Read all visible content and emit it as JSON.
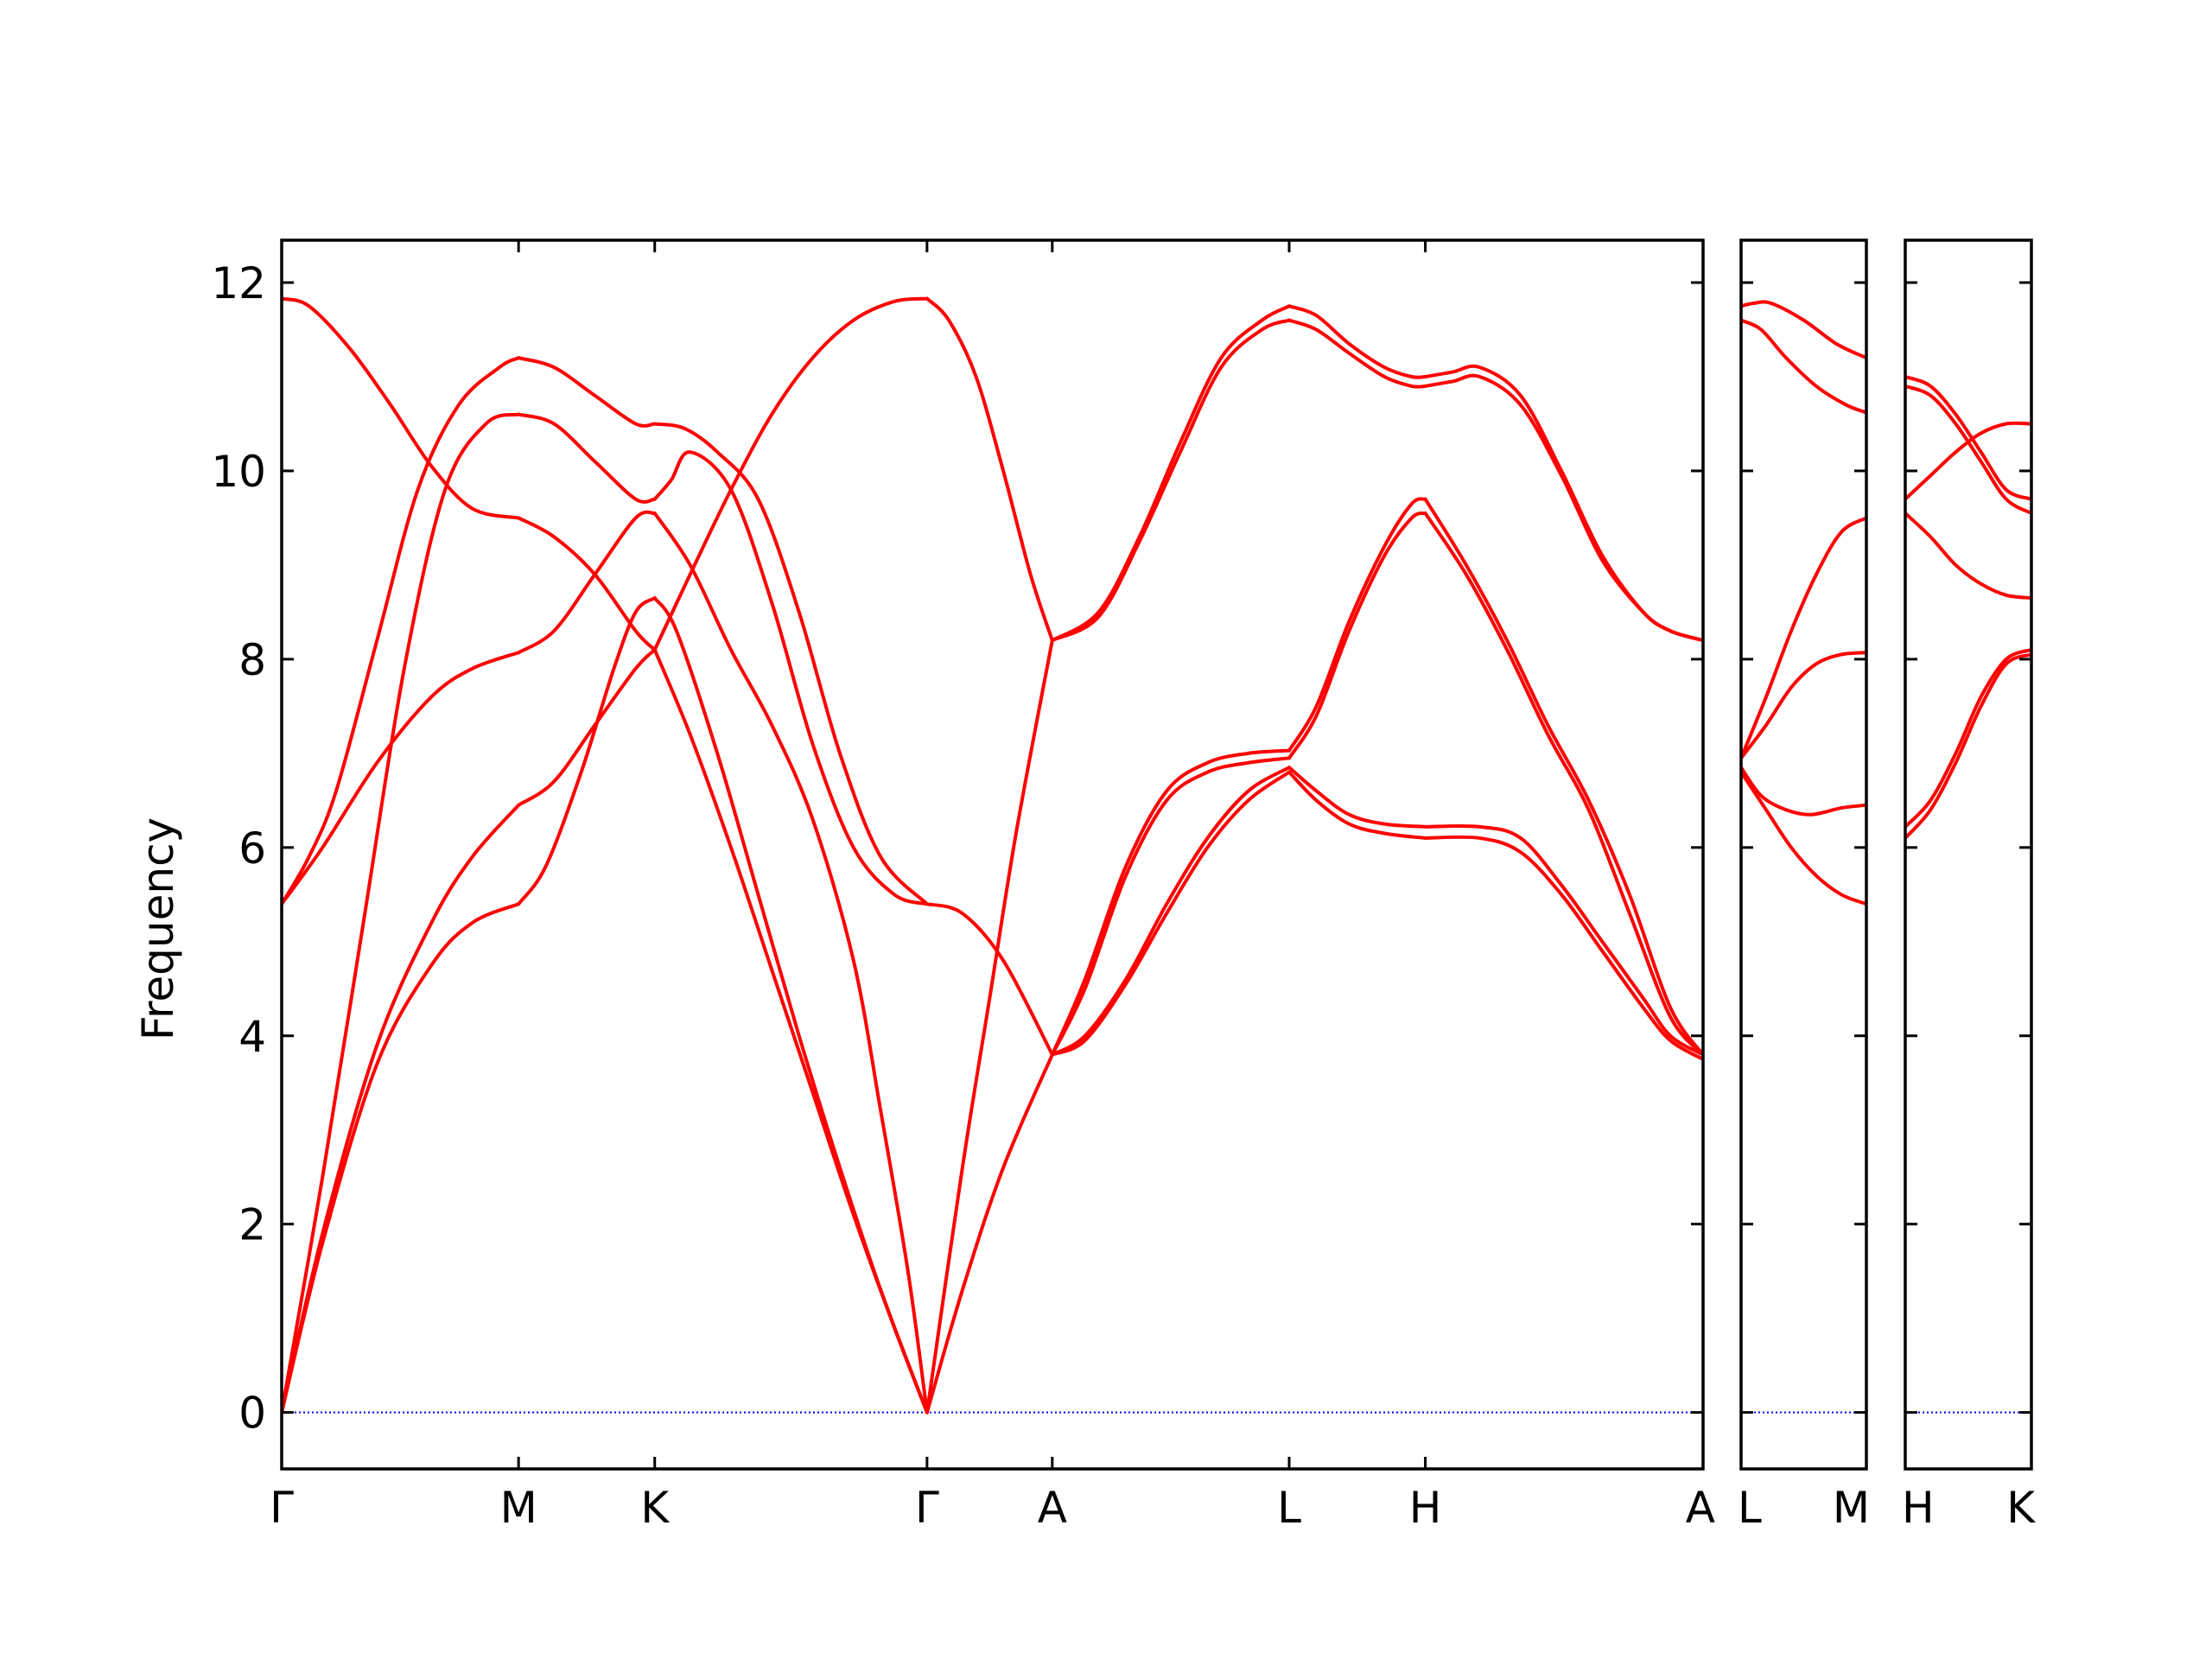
{
  "chart_data": {
    "type": "line",
    "ylabel": "Frequency",
    "ylim": [
      -0.6,
      12.45
    ],
    "yticks": [
      0,
      2,
      4,
      6,
      8,
      10,
      12
    ],
    "ytick_labels": [
      "0",
      "2",
      "4",
      "6",
      "8",
      "10",
      "12"
    ],
    "grid": false,
    "zero_line": {
      "y": 0,
      "color": "#0000ff",
      "style": "dotted"
    },
    "line_color": "#ff0000",
    "panels": [
      {
        "x_range": [
          0,
          5.22
        ],
        "ticks": [
          {
            "x": 0,
            "label": "Γ"
          },
          {
            "x": 0.87,
            "label": "M"
          },
          {
            "x": 1.37,
            "label": "K"
          },
          {
            "x": 2.37,
            "label": "Γ"
          },
          {
            "x": 2.83,
            "label": "A"
          },
          {
            "x": 3.7,
            "label": "L"
          },
          {
            "x": 4.2,
            "label": "H"
          },
          {
            "x": 5.22,
            "label": "A"
          }
        ],
        "series": [
          {
            "x": [
              0,
              0.15,
              0.35,
              0.55,
              0.7,
              0.87
            ],
            "y": [
              0,
              1.9,
              3.9,
              5.2,
              5.9,
              6.45
            ]
          },
          {
            "x": [
              0,
              0.15,
              0.35,
              0.55,
              0.7,
              0.87
            ],
            "y": [
              0,
              1.8,
              3.7,
              4.75,
              5.2,
              5.4
            ]
          },
          {
            "x": [
              0,
              0.1,
              0.2,
              0.35,
              0.5,
              0.65,
              0.8,
              0.87
            ],
            "y": [
              5.4,
              5.9,
              6.6,
              8.2,
              9.8,
              10.7,
              11.1,
              11.2
            ]
          },
          {
            "x": [
              0,
              0.15,
              0.35,
              0.55,
              0.7,
              0.87
            ],
            "y": [
              5.4,
              6.0,
              6.9,
              7.6,
              7.9,
              8.07
            ]
          },
          {
            "x": [
              0,
              0.15,
              0.3,
              0.45,
              0.6,
              0.75,
              0.87
            ],
            "y": [
              0,
              2.5,
              5.2,
              7.9,
              9.8,
              10.5,
              10.6
            ]
          },
          {
            "x": [
              0,
              0.1,
              0.25,
              0.4,
              0.55,
              0.7,
              0.87
            ],
            "y": [
              11.83,
              11.75,
              11.3,
              10.7,
              10.05,
              9.6,
              9.5
            ]
          },
          {
            "x": [
              0.87,
              1.0,
              1.15,
              1.3,
              1.37
            ],
            "y": [
              6.45,
              6.7,
              7.3,
              7.9,
              8.1
            ]
          },
          {
            "x": [
              0.87,
              0.97,
              1.1,
              1.22,
              1.3,
              1.37
            ],
            "y": [
              5.4,
              5.8,
              6.8,
              7.9,
              8.5,
              8.65
            ]
          },
          {
            "x": [
              0.87,
              1.0,
              1.15,
              1.3,
              1.37
            ],
            "y": [
              11.2,
              11.1,
              10.8,
              10.5,
              10.5
            ]
          },
          {
            "x": [
              0.87,
              1.0,
              1.15,
              1.3,
              1.37
            ],
            "y": [
              10.6,
              10.5,
              10.1,
              9.7,
              9.7
            ]
          },
          {
            "x": [
              0.87,
              1.0,
              1.15,
              1.3,
              1.37
            ],
            "y": [
              8.07,
              8.3,
              8.9,
              9.5,
              9.55
            ]
          },
          {
            "x": [
              0.87,
              1.0,
              1.15,
              1.3,
              1.37
            ],
            "y": [
              9.5,
              9.3,
              8.9,
              8.3,
              8.1
            ]
          },
          {
            "x": [
              1.37,
              1.5,
              1.65,
              1.8,
              1.95,
              2.1,
              2.25,
              2.37
            ],
            "y": [
              8.1,
              7.2,
              6.0,
              4.7,
              3.4,
              2.1,
              0.9,
              0
            ]
          },
          {
            "x": [
              1.37,
              1.45,
              1.6,
              1.75,
              1.9,
              2.05,
              2.2,
              2.37
            ],
            "y": [
              8.65,
              8.3,
              7.0,
              5.5,
              4.0,
              2.6,
              1.3,
              0
            ]
          },
          {
            "x": [
              1.37,
              1.48,
              1.6,
              1.75,
              1.9,
              2.05,
              2.2,
              2.37
            ],
            "y": [
              10.5,
              10.45,
              10.2,
              9.7,
              8.5,
              7.0,
              5.9,
              5.4
            ]
          },
          {
            "x": [
              1.37,
              1.43,
              1.5,
              1.65,
              1.8,
              1.95,
              2.1,
              2.25,
              2.37
            ],
            "y": [
              9.7,
              9.9,
              10.2,
              9.8,
              8.6,
              7.1,
              6.0,
              5.5,
              5.4
            ]
          },
          {
            "x": [
              1.37,
              1.5,
              1.65,
              1.8,
              1.95,
              2.1,
              2.2,
              2.3,
              2.37
            ],
            "y": [
              9.55,
              9.0,
              8.1,
              7.3,
              6.3,
              4.8,
              3.2,
              1.5,
              0
            ]
          },
          {
            "x": [
              1.37,
              1.5,
              1.65,
              1.8,
              1.95,
              2.1,
              2.25,
              2.37
            ],
            "y": [
              8.1,
              8.9,
              9.8,
              10.6,
              11.2,
              11.6,
              11.8,
              11.83
            ]
          },
          {
            "x": [
              2.37,
              2.45,
              2.55,
              2.65,
              2.75,
              2.83
            ],
            "y": [
              11.83,
              11.6,
              11.0,
              10.0,
              8.9,
              8.2
            ]
          },
          {
            "x": [
              2.37,
              2.5,
              2.6,
              2.7,
              2.83
            ],
            "y": [
              0,
              2.6,
              4.4,
              6.2,
              8.2
            ]
          },
          {
            "x": [
              2.37,
              2.5,
              2.65,
              2.83
            ],
            "y": [
              0,
              1.3,
              2.6,
              3.8
            ]
          },
          {
            "x": [
              2.37,
              2.5,
              2.65,
              2.83
            ],
            "y": [
              5.4,
              5.3,
              4.8,
              3.8
            ]
          },
          {
            "x": [
              2.83,
              3.0,
              3.15,
              3.3,
              3.45,
              3.6,
              3.7
            ],
            "y": [
              8.2,
              8.5,
              9.3,
              10.3,
              11.2,
              11.6,
              11.75
            ]
          },
          {
            "x": [
              2.83,
              3.0,
              3.15,
              3.3,
              3.45,
              3.6,
              3.7
            ],
            "y": [
              8.2,
              8.45,
              9.25,
              10.2,
              11.1,
              11.5,
              11.6
            ]
          },
          {
            "x": [
              2.83,
              2.95,
              3.1,
              3.25,
              3.4,
              3.55,
              3.7
            ],
            "y": [
              3.8,
              4.6,
              5.8,
              6.6,
              6.9,
              7.0,
              7.03
            ]
          },
          {
            "x": [
              2.83,
              2.95,
              3.1,
              3.25,
              3.4,
              3.55,
              3.7
            ],
            "y": [
              3.8,
              4.5,
              5.7,
              6.5,
              6.8,
              6.9,
              6.95
            ]
          },
          {
            "x": [
              2.83,
              2.95,
              3.1,
              3.25,
              3.4,
              3.55,
              3.7
            ],
            "y": [
              3.8,
              4.0,
              4.6,
              5.4,
              6.1,
              6.6,
              6.85
            ]
          },
          {
            "x": [
              2.83,
              2.95,
              3.1,
              3.25,
              3.4,
              3.55,
              3.7
            ],
            "y": [
              3.8,
              3.95,
              4.55,
              5.3,
              6.0,
              6.5,
              6.8
            ]
          },
          {
            "x": [
              3.7,
              3.8,
              3.92,
              4.05,
              4.15,
              4.2
            ],
            "y": [
              11.75,
              11.65,
              11.35,
              11.1,
              11.0,
              11.0
            ]
          },
          {
            "x": [
              3.7,
              3.8,
              3.92,
              4.05,
              4.15,
              4.2
            ],
            "y": [
              11.6,
              11.5,
              11.25,
              11.0,
              10.9,
              10.9
            ]
          },
          {
            "x": [
              3.7,
              3.8,
              3.92,
              4.05,
              4.15,
              4.2
            ],
            "y": [
              7.03,
              7.5,
              8.4,
              9.2,
              9.65,
              9.7
            ]
          },
          {
            "x": [
              3.7,
              3.8,
              3.92,
              4.05,
              4.15,
              4.2
            ],
            "y": [
              6.95,
              7.4,
              8.3,
              9.1,
              9.5,
              9.55
            ]
          },
          {
            "x": [
              3.7,
              3.8,
              3.92,
              4.05,
              4.2
            ],
            "y": [
              6.85,
              6.6,
              6.35,
              6.25,
              6.22
            ]
          },
          {
            "x": [
              3.7,
              3.8,
              3.92,
              4.05,
              4.2
            ],
            "y": [
              6.8,
              6.5,
              6.25,
              6.15,
              6.1
            ]
          },
          {
            "x": [
              4.2,
              4.3,
              4.4,
              4.55,
              4.7,
              4.85,
              5.0,
              5.1,
              5.22
            ],
            "y": [
              11.0,
              11.05,
              11.1,
              10.8,
              10.0,
              9.1,
              8.5,
              8.3,
              8.2
            ]
          },
          {
            "x": [
              4.2,
              4.3,
              4.4,
              4.55,
              4.7,
              4.85,
              5.0,
              5.1,
              5.22
            ],
            "y": [
              10.9,
              10.95,
              11.0,
              10.7,
              9.95,
              9.05,
              8.5,
              8.3,
              8.2
            ]
          },
          {
            "x": [
              4.2,
              4.35,
              4.5,
              4.65,
              4.8,
              4.95,
              5.1,
              5.22
            ],
            "y": [
              9.7,
              9.0,
              8.2,
              7.3,
              6.5,
              5.5,
              4.3,
              3.8
            ]
          },
          {
            "x": [
              4.2,
              4.35,
              4.5,
              4.65,
              4.8,
              4.95,
              5.1,
              5.22
            ],
            "y": [
              9.55,
              8.9,
              8.1,
              7.2,
              6.4,
              5.3,
              4.2,
              3.8
            ]
          },
          {
            "x": [
              4.2,
              4.4,
              4.55,
              4.7,
              4.85,
              5.0,
              5.1,
              5.22
            ],
            "y": [
              6.22,
              6.22,
              6.1,
              5.6,
              5.0,
              4.4,
              4.0,
              3.8
            ]
          },
          {
            "x": [
              4.2,
              4.4,
              4.55,
              4.7,
              4.85,
              5.0,
              5.1,
              5.22
            ],
            "y": [
              6.1,
              6.1,
              5.95,
              5.5,
              4.9,
              4.3,
              3.95,
              3.75
            ]
          }
        ]
      },
      {
        "x_range": [
          0,
          0.5
        ],
        "ticks": [
          {
            "x": 0,
            "label": "L"
          },
          {
            "x": 0.5,
            "label": "M"
          }
        ],
        "series": [
          {
            "x": [
              0,
              0.05,
              0.12,
              0.25,
              0.38,
              0.5
            ],
            "y": [
              11.75,
              11.78,
              11.78,
              11.6,
              11.35,
              11.2
            ]
          },
          {
            "x": [
              0,
              0.08,
              0.18,
              0.3,
              0.42,
              0.5
            ],
            "y": [
              11.6,
              11.5,
              11.2,
              10.9,
              10.7,
              10.62
            ]
          },
          {
            "x": [
              0,
              0.1,
              0.2,
              0.3,
              0.4,
              0.5
            ],
            "y": [
              6.95,
              7.6,
              8.3,
              8.9,
              9.35,
              9.5
            ]
          },
          {
            "x": [
              0,
              0.1,
              0.2,
              0.3,
              0.4,
              0.5
            ],
            "y": [
              6.95,
              7.3,
              7.7,
              7.95,
              8.05,
              8.07
            ]
          },
          {
            "x": [
              0,
              0.08,
              0.18,
              0.28,
              0.4,
              0.5
            ],
            "y": [
              6.85,
              6.55,
              6.4,
              6.35,
              6.42,
              6.45
            ]
          },
          {
            "x": [
              0,
              0.1,
              0.2,
              0.3,
              0.4,
              0.5
            ],
            "y": [
              6.8,
              6.4,
              6.0,
              5.7,
              5.5,
              5.4
            ]
          }
        ]
      },
      {
        "x_range": [
          0,
          0.5
        ],
        "ticks": [
          {
            "x": 0,
            "label": "H"
          },
          {
            "x": 0.5,
            "label": "K"
          }
        ],
        "series": [
          {
            "x": [
              0,
              0.1,
              0.2,
              0.3,
              0.4,
              0.5
            ],
            "y": [
              11.0,
              10.9,
              10.6,
              10.2,
              9.8,
              9.7
            ]
          },
          {
            "x": [
              0,
              0.1,
              0.2,
              0.3,
              0.4,
              0.5
            ],
            "y": [
              10.9,
              10.8,
              10.5,
              10.1,
              9.7,
              9.55
            ]
          },
          {
            "x": [
              0,
              0.1,
              0.2,
              0.3,
              0.4,
              0.5
            ],
            "y": [
              9.7,
              9.95,
              10.2,
              10.4,
              10.5,
              10.5
            ]
          },
          {
            "x": [
              0,
              0.1,
              0.2,
              0.3,
              0.4,
              0.5
            ],
            "y": [
              9.55,
              9.3,
              9.0,
              8.8,
              8.68,
              8.65
            ]
          },
          {
            "x": [
              0,
              0.1,
              0.2,
              0.3,
              0.4,
              0.5
            ],
            "y": [
              6.22,
              6.5,
              7.0,
              7.6,
              8.0,
              8.1
            ]
          },
          {
            "x": [
              0,
              0.1,
              0.2,
              0.3,
              0.4,
              0.5
            ],
            "y": [
              6.1,
              6.4,
              6.9,
              7.5,
              7.95,
              8.05
            ]
          }
        ]
      }
    ]
  }
}
